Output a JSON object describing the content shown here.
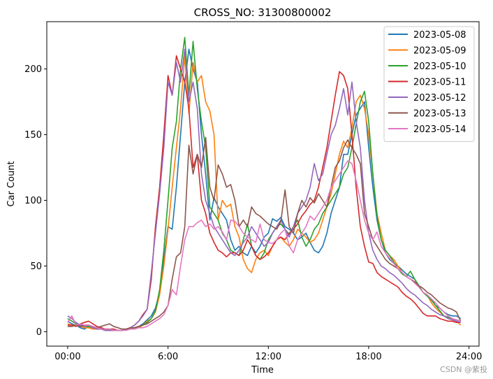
{
  "watermark": "CSDN @紫投",
  "chart_data": {
    "type": "line",
    "title": "CROSS_NO: 31300800002",
    "xlabel": "Time",
    "ylabel": "Car Count",
    "x_unit": "hours",
    "xlim": [
      -1.25,
      24.6
    ],
    "ylim": [
      -11,
      236
    ],
    "x_ticks": [
      {
        "value": 0,
        "label": "00:00"
      },
      {
        "value": 6,
        "label": "6:00"
      },
      {
        "value": 12,
        "label": "12:00"
      },
      {
        "value": 18,
        "label": "18:00"
      },
      {
        "value": 24,
        "label": "24:00"
      }
    ],
    "y_ticks": [
      0,
      50,
      100,
      150,
      200
    ],
    "grid": false,
    "legend_position": "top-right",
    "x": [
      0,
      0.25,
      0.5,
      0.75,
      1,
      1.25,
      1.5,
      1.75,
      2,
      2.25,
      2.5,
      2.75,
      3,
      3.25,
      3.5,
      3.75,
      4,
      4.25,
      4.5,
      4.75,
      5,
      5.25,
      5.5,
      5.75,
      6,
      6.25,
      6.5,
      6.75,
      7,
      7.25,
      7.5,
      7.75,
      8,
      8.25,
      8.5,
      8.75,
      9,
      9.25,
      9.5,
      9.75,
      10,
      10.25,
      10.5,
      10.75,
      11,
      11.25,
      11.5,
      11.75,
      12,
      12.25,
      12.5,
      12.75,
      13,
      13.25,
      13.5,
      13.75,
      14,
      14.25,
      14.5,
      14.75,
      15,
      15.25,
      15.5,
      15.75,
      16,
      16.25,
      16.5,
      16.75,
      17,
      17.25,
      17.5,
      17.75,
      18,
      18.25,
      18.5,
      18.75,
      19,
      19.25,
      19.5,
      19.75,
      20,
      20.25,
      20.5,
      20.75,
      21,
      21.25,
      21.5,
      21.75,
      22,
      22.25,
      22.5,
      22.75,
      23,
      23.25,
      23.5
    ],
    "series": [
      {
        "name": "2023-05-08",
        "color": "#1f77b4",
        "values": [
          8,
          6,
          5,
          3,
          2,
          4,
          3,
          2,
          2,
          1,
          1,
          1,
          1,
          1,
          2,
          2,
          3,
          4,
          6,
          9,
          12,
          18,
          30,
          55,
          80,
          78,
          110,
          150,
          190,
          215,
          200,
          190,
          150,
          120,
          85,
          102,
          95,
          90,
          85,
          70,
          62,
          65,
          60,
          58,
          65,
          60,
          65,
          72,
          75,
          86,
          84,
          87,
          80,
          78,
          75,
          70,
          72,
          75,
          68,
          62,
          60,
          65,
          75,
          90,
          100,
          110,
          135,
          135,
          150,
          165,
          170,
          175,
          140,
          110,
          85,
          70,
          60,
          55,
          52,
          50,
          47,
          44,
          42,
          40,
          35,
          30,
          28,
          25,
          20,
          18,
          15,
          13,
          12,
          12,
          10
        ]
      },
      {
        "name": "2023-05-09",
        "color": "#ff7f0e",
        "values": [
          6,
          5,
          5,
          4,
          3,
          3,
          2,
          2,
          2,
          1,
          1,
          1,
          1,
          1,
          2,
          2,
          3,
          3,
          5,
          8,
          10,
          15,
          28,
          50,
          78,
          110,
          140,
          170,
          210,
          166,
          205,
          190,
          195,
          175,
          168,
          150,
          85,
          100,
          95,
          97,
          80,
          72,
          55,
          48,
          45,
          55,
          60,
          62,
          58,
          65,
          70,
          72,
          68,
          65,
          70,
          78,
          75,
          72,
          68,
          70,
          75,
          85,
          95,
          105,
          120,
          135,
          145,
          140,
          155,
          175,
          180,
          170,
          150,
          120,
          90,
          75,
          62,
          58,
          55,
          50,
          45,
          42,
          40,
          38,
          35,
          30,
          28,
          22,
          18,
          15,
          12,
          10,
          9,
          8,
          5
        ]
      },
      {
        "name": "2023-05-10",
        "color": "#2ca02c",
        "values": [
          10,
          8,
          6,
          5,
          4,
          4,
          3,
          3,
          2,
          2,
          1,
          1,
          1,
          1,
          2,
          2,
          3,
          4,
          5,
          7,
          10,
          16,
          32,
          62,
          100,
          140,
          160,
          200,
          224,
          180,
          221,
          185,
          160,
          140,
          95,
          90,
          85,
          75,
          70,
          62,
          60,
          58,
          70,
          82,
          65,
          58,
          55,
          60,
          70,
          75,
          80,
          82,
          78,
          74,
          80,
          85,
          72,
          65,
          70,
          78,
          82,
          90,
          95,
          100,
          105,
          110,
          120,
          125,
          140,
          158,
          175,
          183,
          160,
          120,
          88,
          70,
          62,
          58,
          53,
          48,
          44,
          42,
          46,
          40,
          35,
          30,
          27,
          24,
          20,
          16,
          12,
          11,
          10,
          9,
          8
        ]
      },
      {
        "name": "2023-05-11",
        "color": "#d62728",
        "values": [
          5,
          5,
          4,
          6,
          7,
          8,
          6,
          4,
          3,
          2,
          2,
          2,
          1,
          1,
          2,
          3,
          5,
          8,
          13,
          17,
          40,
          80,
          110,
          150,
          195,
          180,
          210,
          200,
          190,
          170,
          125,
          135,
          100,
          90,
          75,
          68,
          62,
          60,
          57,
          60,
          60,
          58,
          62,
          70,
          65,
          58,
          55,
          57,
          60,
          65,
          70,
          72,
          70,
          75,
          78,
          82,
          88,
          92,
          97,
          100,
          110,
          125,
          140,
          160,
          180,
          198,
          195,
          185,
          150,
          110,
          80,
          65,
          53,
          52,
          45,
          42,
          40,
          38,
          36,
          34,
          30,
          27,
          25,
          22,
          18,
          14,
          12,
          12,
          12,
          10,
          9,
          8,
          8,
          7,
          7
        ]
      },
      {
        "name": "2023-05-12",
        "color": "#9467bd",
        "values": [
          12,
          10,
          7,
          5,
          4,
          5,
          3,
          2,
          2,
          1,
          1,
          1,
          1,
          1,
          2,
          3,
          5,
          8,
          12,
          17,
          45,
          75,
          105,
          140,
          190,
          180,
          205,
          190,
          215,
          175,
          190,
          170,
          120,
          100,
          90,
          80,
          75,
          70,
          65,
          60,
          58,
          62,
          68,
          72,
          80,
          75,
          70,
          65,
          68,
          75,
          80,
          85,
          78,
          72,
          80,
          90,
          95,
          100,
          110,
          128,
          115,
          120,
          135,
          150,
          157,
          170,
          185,
          165,
          190,
          160,
          140,
          100,
          75,
          62,
          55,
          50,
          48,
          45,
          43,
          40,
          37,
          33,
          30,
          28,
          25,
          22,
          20,
          17,
          15,
          13,
          12,
          10,
          9,
          8,
          7
        ]
      },
      {
        "name": "2023-05-13",
        "color": "#8c564b",
        "values": [
          4,
          4,
          5,
          4,
          5,
          5,
          4,
          3,
          4,
          5,
          6,
          4,
          3,
          2,
          2,
          3,
          3,
          4,
          5,
          6,
          8,
          10,
          12,
          15,
          20,
          40,
          57,
          60,
          80,
          142,
          120,
          135,
          125,
          148,
          110,
          100,
          127,
          120,
          110,
          112,
          100,
          80,
          85,
          80,
          95,
          90,
          88,
          85,
          82,
          80,
          78,
          84,
          108,
          80,
          75,
          90,
          100,
          95,
          102,
          98,
          105,
          100,
          95,
          110,
          125,
          130,
          140,
          146,
          140,
          135,
          128,
          90,
          80,
          70,
          65,
          60,
          55,
          52,
          50,
          48,
          45,
          42,
          40,
          38,
          35,
          33,
          30,
          28,
          25,
          22,
          20,
          18,
          17,
          15,
          8
        ]
      },
      {
        "name": "2023-05-14",
        "color": "#e377c2",
        "values": [
          7,
          12,
          5,
          6,
          5,
          5,
          4,
          3,
          2,
          2,
          2,
          1,
          1,
          1,
          1,
          2,
          2,
          3,
          3,
          4,
          6,
          8,
          10,
          13,
          20,
          32,
          28,
          50,
          70,
          80,
          80,
          83,
          85,
          80,
          82,
          78,
          80,
          76,
          70,
          85,
          84,
          80,
          75,
          72,
          70,
          68,
          82,
          70,
          68,
          67,
          70,
          75,
          78,
          65,
          60,
          70,
          75,
          80,
          88,
          85,
          90,
          95,
          100,
          110,
          115,
          120,
          125,
          130,
          128,
          115,
          100,
          85,
          75,
          70,
          76,
          65,
          60,
          56,
          52,
          48,
          45,
          42,
          40,
          37,
          34,
          30,
          28,
          25,
          22,
          18,
          15,
          12,
          10,
          9,
          8
        ]
      }
    ]
  }
}
